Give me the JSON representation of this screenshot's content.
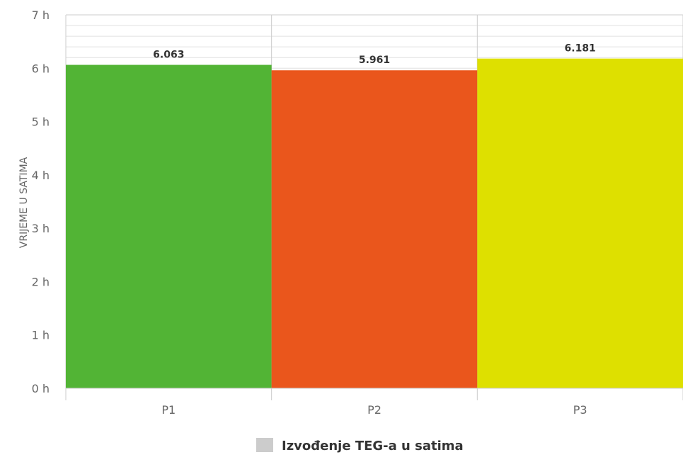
{
  "chart_data": {
    "type": "bar",
    "categories": [
      "P1",
      "P2",
      "P3"
    ],
    "series": [
      {
        "name": "Izvođenje TEG-a u satima",
        "values": [
          6.063,
          5.961,
          6.181
        ],
        "value_labels": [
          "6.063",
          "5.961",
          "6.181"
        ],
        "colors": [
          "#52b435",
          "#ea561c",
          "#dee000"
        ]
      }
    ],
    "ylabel": "VRIJEME U SATIMA",
    "xlabel": "",
    "title": "",
    "ylim": [
      0,
      7
    ],
    "y_ticks": [
      0,
      1,
      2,
      3,
      4,
      5,
      6,
      7
    ],
    "y_tick_labels": [
      "0 h",
      "1 h",
      "2 h",
      "3 h",
      "4 h",
      "5 h",
      "6 h",
      "7 h"
    ],
    "grid": true,
    "legend": {
      "position": "bottom-center",
      "label": "Izvođenje TEG-a u satima",
      "swatch_color": "#cccccc"
    }
  }
}
